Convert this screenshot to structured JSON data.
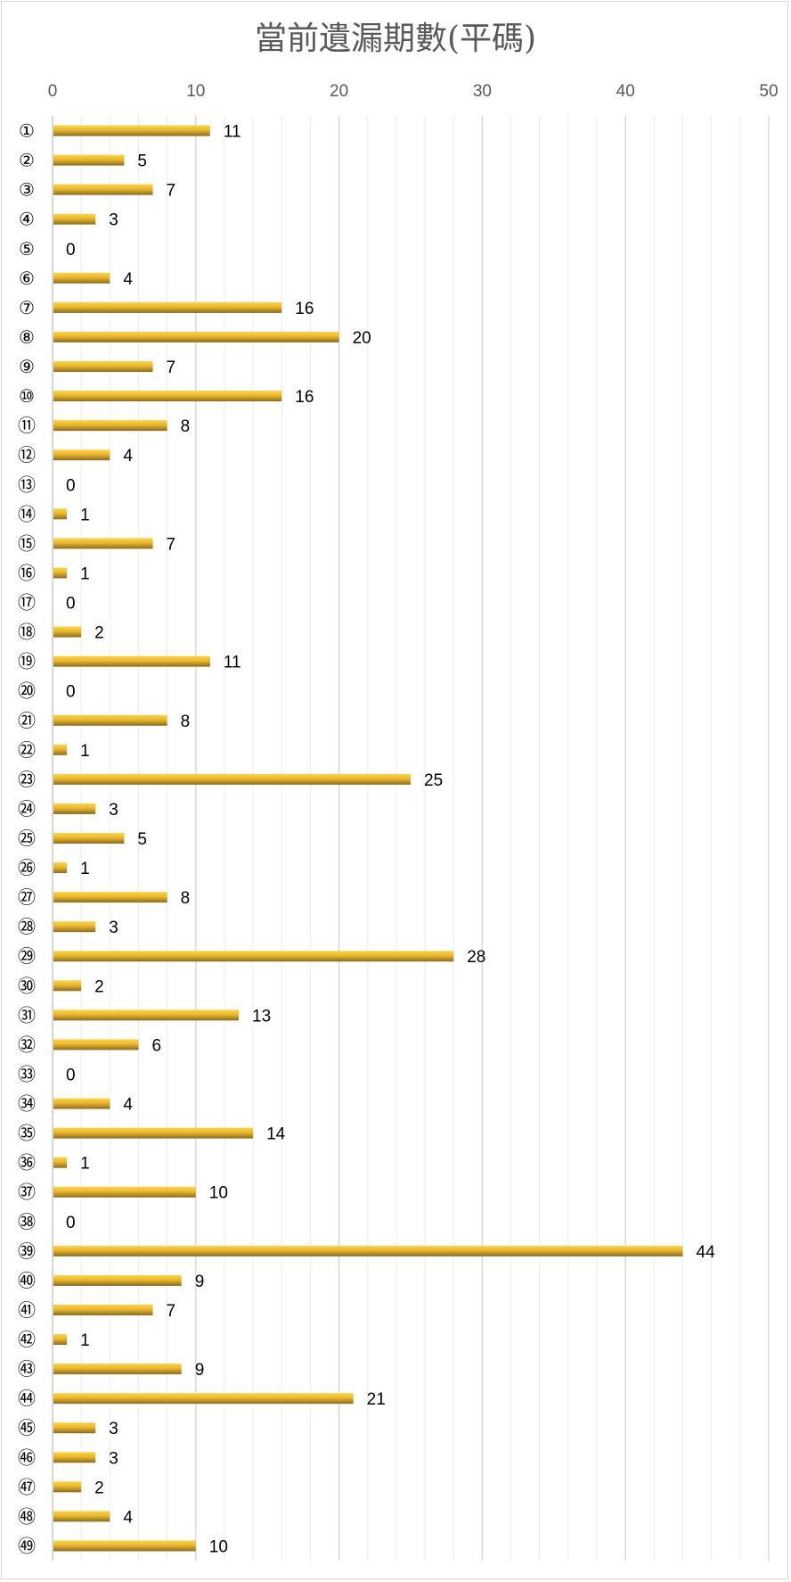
{
  "chart_data": {
    "type": "bar",
    "orientation": "horizontal",
    "title": "當前遺漏期數(平碼)",
    "xlabel": "",
    "ylabel": "",
    "xlim": [
      0,
      50
    ],
    "x_ticks": [
      0,
      10,
      20,
      30,
      40,
      50
    ],
    "x_axis_position": "top",
    "grid": true,
    "legend": "none",
    "bar_color": "#e8b731",
    "categories": [
      "①",
      "②",
      "③",
      "④",
      "⑤",
      "⑥",
      "⑦",
      "⑧",
      "⑨",
      "⑩",
      "⑪",
      "⑫",
      "⑬",
      "⑭",
      "⑮",
      "⑯",
      "⑰",
      "⑱",
      "⑲",
      "⑳",
      "㉑",
      "㉒",
      "㉓",
      "㉔",
      "㉕",
      "㉖",
      "㉗",
      "㉘",
      "㉙",
      "㉚",
      "㉛",
      "㉜",
      "㉝",
      "㉞",
      "㉟",
      "㊱",
      "㊲",
      "㊳",
      "㊴",
      "㊵",
      "㊶",
      "㊷",
      "㊸",
      "㊹",
      "㊺",
      "㊻",
      "㊼",
      "㊽",
      "㊾"
    ],
    "values": [
      11,
      5,
      7,
      3,
      0,
      4,
      16,
      20,
      7,
      16,
      8,
      4,
      0,
      1,
      7,
      1,
      0,
      2,
      11,
      0,
      8,
      1,
      25,
      3,
      5,
      1,
      8,
      3,
      28,
      2,
      13,
      6,
      0,
      4,
      14,
      1,
      10,
      0,
      44,
      9,
      7,
      1,
      9,
      21,
      3,
      3,
      2,
      4,
      10
    ]
  }
}
